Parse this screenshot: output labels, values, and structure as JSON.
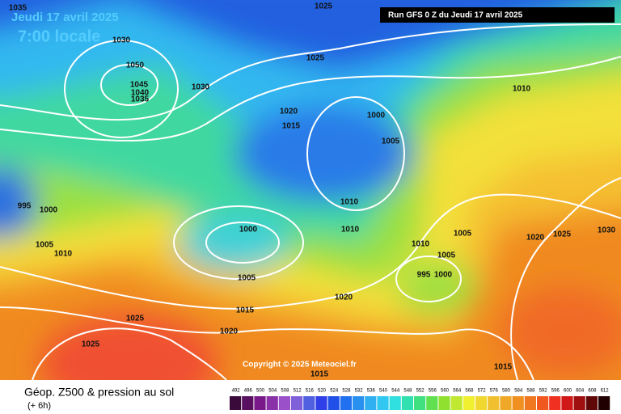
{
  "header": {
    "date": "Jeudi 17 avril 2025",
    "time": "7:00 locale",
    "run": "Run GFS 0 Z du Jeudi 17 avril 2025"
  },
  "copyright": "Copyright © 2025 Meteociel.fr",
  "footer": {
    "title": "Géop. Z500 & pression au sol",
    "lead": "(+ 6h)"
  },
  "scale": {
    "values": [
      492,
      496,
      500,
      504,
      508,
      512,
      516,
      520,
      524,
      528,
      532,
      536,
      540,
      544,
      548,
      552,
      556,
      560,
      564,
      568,
      572,
      576,
      580,
      584,
      588,
      592,
      596,
      600,
      604,
      608,
      612
    ],
    "colors": [
      "#3a0a3a",
      "#5a1060",
      "#7a1a8a",
      "#8a30a8",
      "#9a50c8",
      "#8060d8",
      "#5060e0",
      "#3040e8",
      "#2050e8",
      "#2070f0",
      "#2a90f0",
      "#30b0f0",
      "#30c8f0",
      "#30e0e0",
      "#30e0b0",
      "#40e080",
      "#60e050",
      "#90e030",
      "#c0e830",
      "#f0f030",
      "#f0d830",
      "#f0c030",
      "#f0a828",
      "#f09020",
      "#f07820",
      "#f05820",
      "#f03020",
      "#d01818",
      "#a01010",
      "#600808",
      "#200000"
    ]
  },
  "isobar_labels": [
    1035,
    1030,
    1025,
    1050,
    1045,
    1040,
    1035,
    1030,
    1025,
    1020,
    1015,
    1000,
    1005,
    1010,
    995,
    1000,
    1005,
    1010,
    1000,
    1005,
    1010,
    1010,
    1010,
    1005,
    1005,
    1020,
    1025,
    1030,
    995,
    1000,
    1020,
    1015,
    1020,
    1025,
    1025,
    1015,
    1015
  ]
}
